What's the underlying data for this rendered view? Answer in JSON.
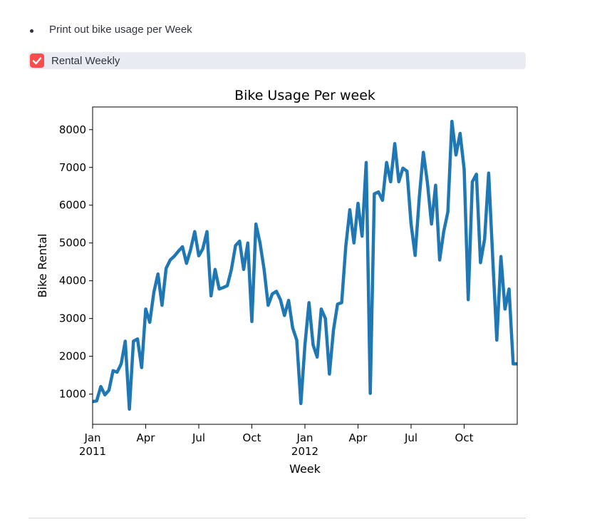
{
  "bullet": "Print out bike usage per Week",
  "checkbox": {
    "label": "Rental Weekly",
    "checked": true
  },
  "chart_data": {
    "type": "line",
    "title": "Bike Usage Per week",
    "x_label": "Week",
    "y_label": "Bike Rental",
    "color": "#1f77b4",
    "xlim": [
      0,
      104
    ],
    "xticks": [
      {
        "value": 0,
        "label": "Jan\n2011"
      },
      {
        "value": 13,
        "label": "Apr"
      },
      {
        "value": 26,
        "label": "Jul"
      },
      {
        "value": 39,
        "label": "Oct"
      },
      {
        "value": 52,
        "label": "Jan\n2012"
      },
      {
        "value": 65,
        "label": "Apr"
      },
      {
        "value": 78,
        "label": "Jul"
      },
      {
        "value": 91,
        "label": "Oct"
      }
    ],
    "ylim": [
      200,
      8600
    ],
    "yticks": [
      1000,
      2000,
      3000,
      4000,
      5000,
      6000,
      7000,
      8000
    ],
    "values": [
      800,
      820,
      1200,
      980,
      1100,
      1620,
      1580,
      1800,
      2400,
      600,
      2400,
      2460,
      1700,
      3250,
      2900,
      3700,
      4180,
      3350,
      4330,
      4550,
      4650,
      4780,
      4900,
      4460,
      4820,
      5300,
      4660,
      4850,
      5300,
      3600,
      4300,
      3780,
      3820,
      3870,
      4300,
      4930,
      5050,
      4300,
      5000,
      2920,
      5500,
      5000,
      4300,
      3350,
      3650,
      3720,
      3500,
      3080,
      3480,
      2750,
      2430,
      750,
      2300,
      3420,
      2300,
      1980,
      3250,
      3000,
      1530,
      2700,
      3380,
      3420,
      4900,
      5880,
      5000,
      6050,
      5180,
      7130,
      1020,
      6300,
      6350,
      6130,
      7130,
      6620,
      7630,
      6620,
      6980,
      6900,
      5500,
      4670,
      6200,
      7400,
      6600,
      5500,
      6530,
      4550,
      5300,
      5820,
      8220,
      7330,
      7900,
      6950,
      3500,
      6620,
      6820,
      4480,
      5100,
      6850,
      4600,
      2430,
      4640,
      3250,
      3780,
      1800,
      1800
    ]
  }
}
